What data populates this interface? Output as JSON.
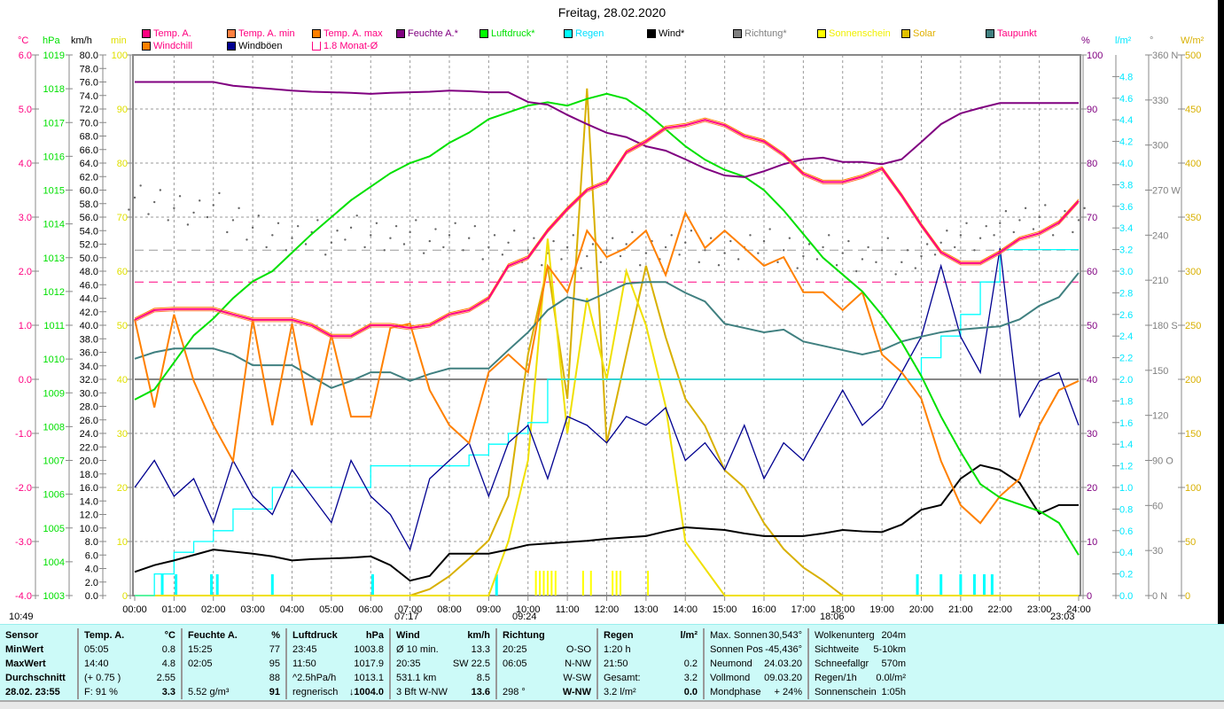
{
  "title": "Freitag, 28.02.2020",
  "legend": [
    {
      "label": "Temp. A.",
      "box": "#ff0080",
      "text": "#ff0080"
    },
    {
      "label": "Temp. A. min",
      "box": "#ff8040",
      "text": "#ff0080"
    },
    {
      "label": "Temp. A. max",
      "box": "#ff8000",
      "text": "#ff0080"
    },
    {
      "label": "Feuchte A.*",
      "box": "#800080",
      "text": "#800080"
    },
    {
      "label": "Luftdruck*",
      "box": "#00ff00",
      "text": "#00e000"
    },
    {
      "label": "Regen",
      "box": "#00ffff",
      "text": "#00e0ff"
    },
    {
      "label": "Wind*",
      "box": "#000000",
      "text": "#000000"
    },
    {
      "label": "Richtung*",
      "box": "#808080",
      "text": "#808080"
    },
    {
      "label": "Sonnenschein",
      "box": "#ffff00",
      "text": "#f0f000"
    },
    {
      "label": "Solar",
      "box": "#e0c000",
      "text": "#e0b000"
    },
    {
      "label": "Taupunkt",
      "box": "#408080",
      "text": "#ff0080"
    },
    {
      "label": "Windchill",
      "box": "#ff8000",
      "text": "#ff0080"
    },
    {
      "label": "Windböen",
      "box": "#000090",
      "text": "#000000"
    },
    {
      "label": "1.8 Monat-Ø",
      "box": "none",
      "text": "#ff0080"
    }
  ],
  "units": {
    "temp": "°C",
    "press": "hPa",
    "wind": "km/h",
    "sun": "min",
    "hum": "%",
    "rain": "l/m²",
    "dir": "°",
    "solar": "W/m²"
  },
  "sun_labels": {
    "daylength": "10:49",
    "sunrise": "07:17",
    "moon": "09:24",
    "sunset": "18:06",
    "moonset": "23:03"
  },
  "chart_data": {
    "type": "line",
    "title": "Freitag, 28.02.2020",
    "x_hours_step": 0.5,
    "x_ticks": [
      "00:00",
      "01:00",
      "02:00",
      "03:00",
      "04:00",
      "05:00",
      "06:00",
      "07:00",
      "08:00",
      "09:00",
      "10:00",
      "11:00",
      "12:00",
      "13:00",
      "14:00",
      "15:00",
      "16:00",
      "17:00",
      "18:00",
      "19:00",
      "20:00",
      "21:00",
      "22:00",
      "23:00",
      "24:00"
    ],
    "axes": {
      "temp": {
        "range": [
          -4,
          6
        ],
        "step": 1,
        "decimals": 1,
        "color": "#ff0080"
      },
      "press": {
        "range": [
          1003,
          1019
        ],
        "step": 1,
        "decimals": 0,
        "color": "#00e000"
      },
      "wind": {
        "range": [
          0,
          80
        ],
        "step": 2,
        "decimals": 1,
        "color": "#000000"
      },
      "sun": {
        "range": [
          0,
          100
        ],
        "step": 10,
        "decimals": 0,
        "color": "#f0e000"
      },
      "hum": {
        "range": [
          0,
          100
        ],
        "step": 10,
        "decimals": 0,
        "color": "#800080"
      },
      "rain": {
        "range": [
          0,
          5
        ],
        "step": 0.2,
        "max_label": 4.8,
        "decimals": 1,
        "color": "#00e8ff"
      },
      "dir": {
        "range": [
          0,
          360
        ],
        "step": 30,
        "labels": {
          "0": "0   N",
          "90": "90  O",
          "180": "180 S",
          "270": "270 W",
          "360": "360 N"
        },
        "color": "#808080"
      },
      "solar": {
        "range": [
          0,
          500
        ],
        "step": 50,
        "decimals": 0,
        "color": "#d8b000"
      }
    },
    "monthly_avg_temp": 1.8,
    "direction_avg": 230,
    "series": [
      {
        "name": "Temp. A.",
        "axis": "temp",
        "color": "#ff0080",
        "values": [
          1.1,
          1.28,
          1.3,
          1.3,
          1.3,
          1.2,
          1.1,
          1.1,
          1.1,
          1.0,
          0.8,
          0.8,
          1.0,
          1.0,
          0.95,
          1.0,
          1.2,
          1.28,
          1.5,
          2.1,
          2.25,
          2.75,
          3.15,
          3.5,
          3.65,
          4.2,
          4.4,
          4.65,
          4.7,
          4.8,
          4.7,
          4.5,
          4.4,
          4.15,
          3.8,
          3.65,
          3.65,
          3.75,
          3.9,
          3.4,
          2.85,
          2.35,
          2.15,
          2.15,
          2.35,
          2.6,
          2.7,
          2.9,
          3.3
        ]
      },
      {
        "name": "Feuchte A.",
        "axis": "hum",
        "color": "#800080",
        "values": [
          95,
          95,
          95,
          95,
          95,
          94.3,
          94,
          93.7,
          93.4,
          93.2,
          93.1,
          93,
          92.8,
          93,
          93.1,
          93.2,
          93.4,
          93.3,
          93.1,
          93.1,
          91.3,
          90.8,
          88.9,
          87.2,
          85.6,
          84.8,
          83.1,
          82.3,
          80.7,
          79,
          77.7,
          77.4,
          78.5,
          79.8,
          80.7,
          81,
          80.2,
          80.2,
          79.8,
          80.7,
          83.9,
          87.2,
          89.2,
          90.2,
          91.1,
          91.1,
          91.1,
          91.1,
          91.1
        ]
      },
      {
        "name": "Luftdruck",
        "axis": "press",
        "color": "#00e000",
        "values": [
          1008.8,
          1009.1,
          1009.9,
          1010.7,
          1011.2,
          1011.8,
          1012.3,
          1012.6,
          1013.15,
          1013.7,
          1014.2,
          1014.7,
          1015.1,
          1015.5,
          1015.8,
          1016.0,
          1016.4,
          1016.7,
          1017.1,
          1017.3,
          1017.5,
          1017.6,
          1017.5,
          1017.7,
          1017.85,
          1017.7,
          1017.3,
          1016.8,
          1016.3,
          1015.9,
          1015.6,
          1015.4,
          1015.0,
          1014.4,
          1013.7,
          1013.0,
          1012.5,
          1012.0,
          1011.3,
          1010.5,
          1009.5,
          1008.3,
          1007.25,
          1006.3,
          1005.9,
          1005.7,
          1005.5,
          1005.15,
          1004.2
        ]
      },
      {
        "name": "Taupunkt",
        "axis": "temp",
        "color": "#408080",
        "values": [
          0.38,
          0.5,
          0.57,
          0.57,
          0.57,
          0.46,
          0.26,
          0.26,
          0.26,
          0.05,
          -0.16,
          -0.03,
          0.13,
          0.13,
          -0.03,
          0.1,
          0.2,
          0.2,
          0.2,
          0.54,
          0.87,
          1.28,
          1.52,
          1.44,
          1.6,
          1.77,
          1.8,
          1.8,
          1.6,
          1.44,
          1.03,
          0.95,
          0.87,
          0.92,
          0.7,
          0.62,
          0.54,
          0.46,
          0.54,
          0.7,
          0.79,
          0.87,
          0.92,
          0.95,
          0.98,
          1.11,
          1.36,
          1.52,
          1.97
        ]
      },
      {
        "name": "Windchill",
        "axis": "temp",
        "color": "#ff8000",
        "values": [
          1.11,
          -0.52,
          1.2,
          -0.03,
          -0.85,
          -1.51,
          1.11,
          -0.85,
          1.03,
          -0.85,
          0.82,
          -0.69,
          -0.69,
          0.95,
          1.03,
          -0.2,
          -0.85,
          -1.18,
          0.13,
          0.46,
          0.13,
          2.1,
          1.61,
          2.75,
          2.26,
          2.43,
          2.75,
          1.93,
          3.08,
          2.43,
          2.75,
          2.43,
          2.1,
          2.26,
          1.61,
          1.61,
          1.28,
          1.61,
          0.46,
          0.13,
          -0.36,
          -1.51,
          -2.33,
          -2.66,
          -2.16,
          -1.84,
          -0.85,
          -0.2,
          -0.03
        ]
      },
      {
        "name": "Windböen",
        "axis": "wind",
        "color": "#000090",
        "values": [
          16,
          20,
          14.7,
          17.3,
          10.8,
          20,
          14.7,
          12,
          18.6,
          14.7,
          10.8,
          20,
          14.7,
          12,
          6.8,
          17.3,
          20,
          22.6,
          14.7,
          22.6,
          25.2,
          17.3,
          26.5,
          25.2,
          22.6,
          26.5,
          25.2,
          27.8,
          20,
          22.6,
          18.6,
          25.2,
          17.3,
          22.6,
          20,
          25.2,
          30.4,
          25.2,
          27.8,
          33,
          38.3,
          48.8,
          38.3,
          33,
          51.4,
          26.5,
          31.7,
          33,
          25.2
        ]
      },
      {
        "name": "Wind",
        "axis": "wind",
        "color": "#000000",
        "values": [
          3.5,
          4.5,
          5.2,
          6,
          6.8,
          6.5,
          6.2,
          5.8,
          5.2,
          5.4,
          5.5,
          5.6,
          5.8,
          4.5,
          2.2,
          2.9,
          6.2,
          6.2,
          6.2,
          6.8,
          7.5,
          7.7,
          7.9,
          8.1,
          8.4,
          8.6,
          8.8,
          9.5,
          10.1,
          9.9,
          9.7,
          9.2,
          8.8,
          8.8,
          8.8,
          9.2,
          9.7,
          9.5,
          9.4,
          10.5,
          12.7,
          13.4,
          17.3,
          19.3,
          18.6,
          16.7,
          12.1,
          13.4,
          13.4
        ]
      },
      {
        "name": "Regen",
        "axis": "rain",
        "color": "#00ffff",
        "values": [
          0,
          0.2,
          0.4,
          0.5,
          0.6,
          0.8,
          0.8,
          1.0,
          1.0,
          1.0,
          1.0,
          1.0,
          1.2,
          1.2,
          1.2,
          1.2,
          1.2,
          1.3,
          1.4,
          1.5,
          1.6,
          2.0,
          2.0,
          2.0,
          2.0,
          2.0,
          2.0,
          2.0,
          2.0,
          2.0,
          2.0,
          2.0,
          2.0,
          2.0,
          2.0,
          2.0,
          2.0,
          2.0,
          2.0,
          2.0,
          2.2,
          2.4,
          2.6,
          2.9,
          3.2,
          3.2,
          3.2,
          3.2,
          3.2
        ]
      },
      {
        "name": "Solar",
        "axis": "solar",
        "color": "#d8b000",
        "values": [
          0,
          0,
          0,
          0,
          0,
          0,
          0,
          0,
          0,
          0,
          0,
          0,
          0,
          0,
          0,
          6,
          18,
          34,
          51,
          92,
          223,
          305,
          182,
          469,
          141,
          223,
          305,
          239,
          182,
          157,
          116,
          100,
          67,
          43,
          26,
          14,
          0,
          0,
          0,
          0,
          0,
          0,
          0,
          0,
          0,
          0,
          0,
          0,
          0
        ]
      },
      {
        "name": "Sonnenschein",
        "axis": "sun",
        "color": "#f0e000",
        "values": [
          0,
          0,
          0,
          0,
          0,
          0,
          0,
          0,
          0,
          0,
          0,
          0,
          0,
          0,
          0,
          0,
          0,
          0,
          0,
          10,
          25,
          66,
          30,
          55,
          40,
          60,
          50,
          35,
          10,
          5,
          0,
          0,
          0,
          0,
          0,
          0,
          0,
          0,
          0,
          0,
          0,
          0,
          0,
          0,
          0,
          0,
          0,
          0,
          0
        ]
      },
      {
        "name": "Richtung",
        "axis": "dir",
        "color": "#808080",
        "values": [
          265,
          262,
          258,
          255,
          260,
          250,
          245,
          240,
          238,
          242,
          235,
          245,
          240,
          238,
          242,
          236,
          240,
          238,
          232,
          235,
          230,
          228,
          232,
          226,
          230,
          234,
          228,
          232,
          235,
          230,
          228,
          232,
          236,
          230,
          226,
          232,
          228,
          224,
          230,
          222,
          226,
          235,
          240,
          238,
          248,
          250,
          252,
          248,
          250
        ]
      }
    ],
    "rain_events_h": [
      0.7,
      1.05,
      1.95,
      2.1,
      3.5,
      6.05,
      9.2,
      19.9,
      20.5,
      21.0,
      21.35,
      21.6,
      21.8
    ],
    "sunshine_events_h": [
      10.2,
      10.3,
      10.4,
      10.5,
      10.6,
      10.7,
      11.4,
      11.6,
      12.15,
      12.25,
      12.35,
      13.05
    ]
  },
  "stats": {
    "sensor": {
      "head": "Sensor",
      "rows": [
        "MinWert",
        "MaxWert",
        "Durchschnitt",
        "28.02. 23:55"
      ]
    },
    "temp": {
      "head": "Temp. A.",
      "unit": "°C",
      "rows": [
        [
          "05:05",
          "0.8"
        ],
        [
          "14:40",
          "4.8"
        ],
        [
          "(+ 0.75 )",
          "2.55"
        ],
        [
          "F: 91 %",
          "3.3"
        ]
      ]
    },
    "hum": {
      "head": "Feuchte A.",
      "unit": "%",
      "rows": [
        [
          "15:25",
          "77"
        ],
        [
          "02:05",
          "95"
        ],
        [
          "",
          "88"
        ],
        [
          "5.52 g/m³",
          "91"
        ]
      ]
    },
    "press": {
      "head": "Luftdruck",
      "unit": "hPa",
      "rows": [
        [
          "23:45",
          "1003.8"
        ],
        [
          "11:50",
          "1017.9"
        ],
        [
          "^2.5hPa/h",
          "1013.1"
        ],
        [
          "regnerisch",
          "↓1004.0"
        ]
      ]
    },
    "wind": {
      "head": "Wind",
      "unit": "km/h",
      "rows": [
        [
          "Ø 10 min.",
          "13.3"
        ],
        [
          "20:35",
          "SW 22.5"
        ],
        [
          "531.1 km",
          "8.5"
        ],
        [
          "3 Bft W-NW",
          "13.6"
        ]
      ]
    },
    "dir": {
      "head": "Richtung",
      "unit": "",
      "rows": [
        [
          "20:25",
          "O-SO"
        ],
        [
          "06:05",
          "N-NW"
        ],
        [
          "",
          "W-SW"
        ],
        [
          "298 °",
          "W-NW"
        ]
      ]
    },
    "rain": {
      "head": "Regen",
      "unit": "l/m²",
      "rows": [
        [
          "1:20 h",
          ""
        ],
        [
          "21:50",
          "0.2"
        ],
        [
          "Gesamt:",
          "3.2"
        ],
        [
          "3.2 l/m²",
          "0.0"
        ]
      ]
    },
    "astro": [
      [
        "Max. Sonnen",
        "30,543°"
      ],
      [
        "Sonnen Pos",
        "-45,436°"
      ],
      [
        "Neumond",
        "24.03.20"
      ],
      [
        "Vollmond",
        "09.03.20"
      ],
      [
        "Mondphase",
        "+ 24%"
      ]
    ],
    "misc": [
      [
        "Wolkenunterg",
        "204m"
      ],
      [
        "Sichtweite",
        "5-10km"
      ],
      [
        "Schneefallgr",
        "570m"
      ],
      [
        "Regen/1h",
        "0.0l/m²"
      ],
      [
        "Sonnenschein",
        "1:05h"
      ]
    ]
  }
}
